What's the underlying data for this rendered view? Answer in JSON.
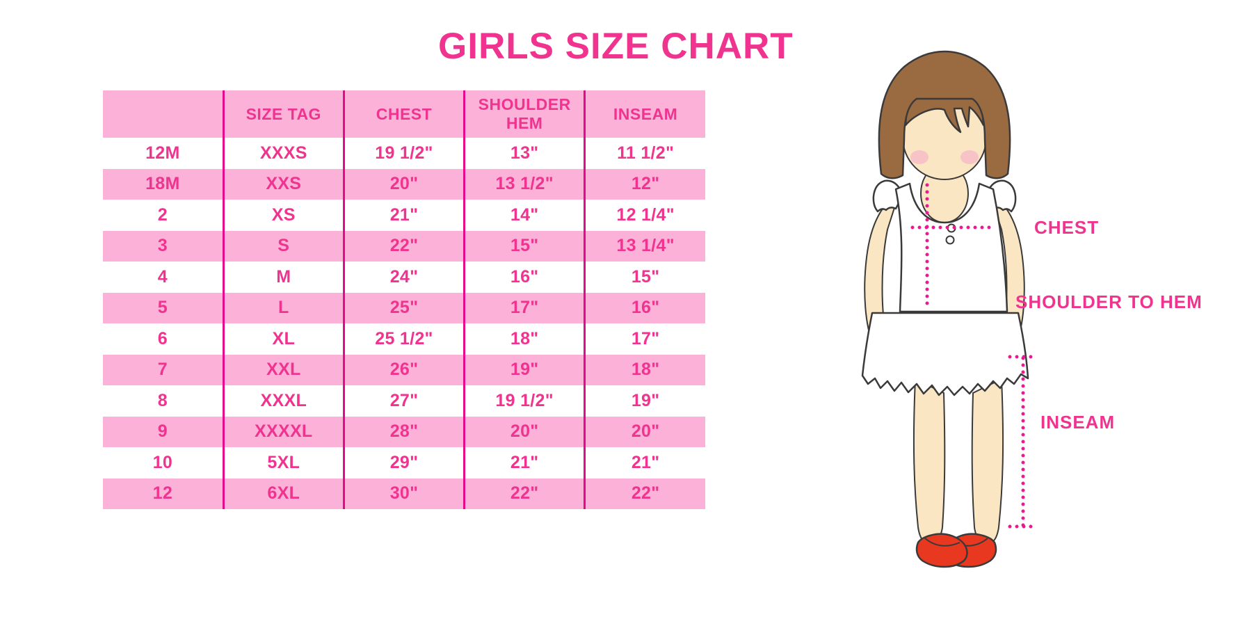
{
  "page_title": "GIRLS SIZE CHART",
  "chart_data": {
    "type": "table",
    "title": "GIRLS SIZE CHART",
    "columns": [
      "",
      "SIZE TAG",
      "CHEST",
      "SHOULDER HEM",
      "INSEAM"
    ],
    "rows": [
      [
        "12M",
        "XXXS",
        "19 1/2\"",
        "13\"",
        "11 1/2\""
      ],
      [
        "18M",
        "XXS",
        "20\"",
        "13 1/2\"",
        "12\""
      ],
      [
        "2",
        "XS",
        "21\"",
        "14\"",
        "12 1/4\""
      ],
      [
        "3",
        "S",
        "22\"",
        "15\"",
        "13 1/4\""
      ],
      [
        "4",
        "M",
        "24\"",
        "16\"",
        "15\""
      ],
      [
        "5",
        "L",
        "25\"",
        "17\"",
        "16\""
      ],
      [
        "6",
        "XL",
        "25 1/2\"",
        "18\"",
        "17\""
      ],
      [
        "7",
        "XXL",
        "26\"",
        "19\"",
        "18\""
      ],
      [
        "8",
        "XXXL",
        "27\"",
        "19 1/2\"",
        "19\""
      ],
      [
        "9",
        "XXXXL",
        "28\"",
        "20\"",
        "20\""
      ],
      [
        "10",
        "5XL",
        "29\"",
        "21\"",
        "21\""
      ],
      [
        "12",
        "6XL",
        "30\"",
        "22\"",
        "22\""
      ]
    ],
    "row_striping": "alternating white / pink, header pink",
    "legend_position": "none",
    "grid": "vertical magenta column separators only"
  },
  "measurement_diagram": {
    "chest_label": "CHEST",
    "shoulder_to_hem_label": "SHOULDER TO HEM",
    "inseam_label": "INSEAM"
  },
  "colors": {
    "magenta": "#F0338F",
    "row_pink": "#FBB1D8",
    "grid_line": "#E50A8C",
    "dot_line": "#EC1890",
    "hair_brown": "#9A6B41",
    "skin": "#FAE6C2",
    "shoe_red": "#E8381F",
    "outline": "#3A3A3A"
  }
}
